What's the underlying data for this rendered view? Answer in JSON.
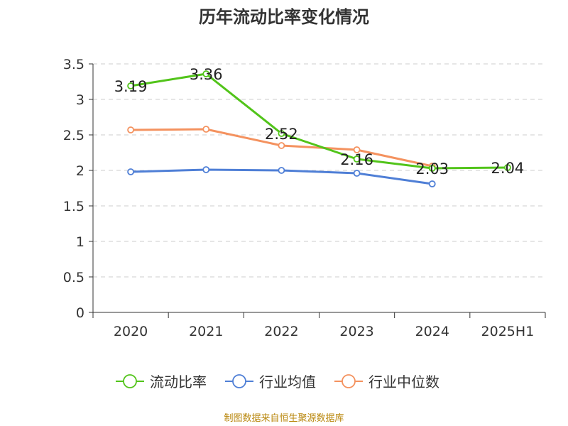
{
  "title": "历年流动比率变化情况",
  "source": "制图数据来自恒生聚源数据库",
  "chart_data": {
    "type": "line",
    "title": "历年流动比率变化情况",
    "categories": [
      "2020",
      "2021",
      "2022",
      "2023",
      "2024",
      "2025H1"
    ],
    "ylim": [
      0,
      3.5
    ],
    "yticks": [
      "0",
      "0.5",
      "1",
      "1.5",
      "2",
      "2.5",
      "3",
      "3.5"
    ],
    "grid": true,
    "legend_position": "bottom-center",
    "series": [
      {
        "name": "流动比率",
        "color": "#52c41a",
        "labeled": true,
        "values": [
          3.19,
          3.36,
          2.52,
          2.16,
          2.03,
          2.04
        ]
      },
      {
        "name": "行业均值",
        "color": "#4f7fd6",
        "labeled": false,
        "values": [
          1.98,
          2.01,
          2.0,
          1.96,
          1.81,
          null
        ]
      },
      {
        "name": "行业中位数",
        "color": "#f4925f",
        "labeled": false,
        "values": [
          2.57,
          2.58,
          2.35,
          2.29,
          2.06,
          null
        ]
      }
    ]
  }
}
